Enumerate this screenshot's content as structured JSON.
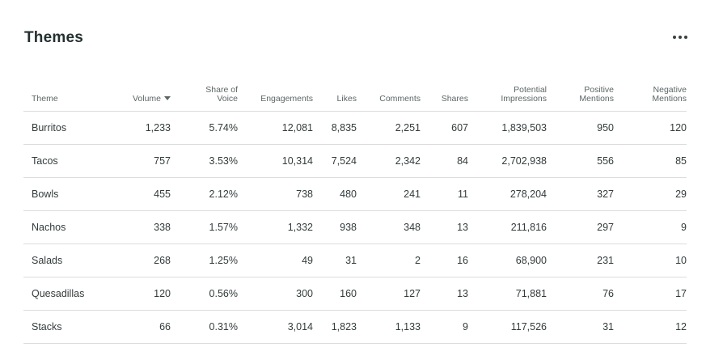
{
  "panel": {
    "title": "Themes",
    "menu_icon": "more-horizontal-icon"
  },
  "table": {
    "columns": [
      {
        "line1": "",
        "line2": "Theme"
      },
      {
        "line1": "",
        "line2": "Volume"
      },
      {
        "line1": "Share of",
        "line2": "Voice"
      },
      {
        "line1": "",
        "line2": "Engagements"
      },
      {
        "line1": "",
        "line2": "Likes"
      },
      {
        "line1": "",
        "line2": "Comments"
      },
      {
        "line1": "",
        "line2": "Shares"
      },
      {
        "line1": "Potential",
        "line2": "Impressions"
      },
      {
        "line1": "Positive",
        "line2": "Mentions"
      },
      {
        "line1": "Negative",
        "line2": "Mentions"
      }
    ],
    "sort_column": "Volume",
    "sort_direction": "descending",
    "rows": [
      [
        "Burritos",
        "1,233",
        "5.74%",
        "12,081",
        "8,835",
        "2,251",
        "607",
        "1,839,503",
        "950",
        "120"
      ],
      [
        "Tacos",
        "757",
        "3.53%",
        "10,314",
        "7,524",
        "2,342",
        "84",
        "2,702,938",
        "556",
        "85"
      ],
      [
        "Bowls",
        "455",
        "2.12%",
        "738",
        "480",
        "241",
        "11",
        "278,204",
        "327",
        "29"
      ],
      [
        "Nachos",
        "338",
        "1.57%",
        "1,332",
        "938",
        "348",
        "13",
        "211,816",
        "297",
        "9"
      ],
      [
        "Salads",
        "268",
        "1.25%",
        "49",
        "31",
        "2",
        "16",
        "68,900",
        "231",
        "10"
      ],
      [
        "Quesadillas",
        "120",
        "0.56%",
        "300",
        "160",
        "127",
        "13",
        "71,881",
        "76",
        "17"
      ],
      [
        "Stacks",
        "66",
        "0.31%",
        "3,014",
        "1,823",
        "1,133",
        "9",
        "117,526",
        "31",
        "12"
      ]
    ]
  }
}
